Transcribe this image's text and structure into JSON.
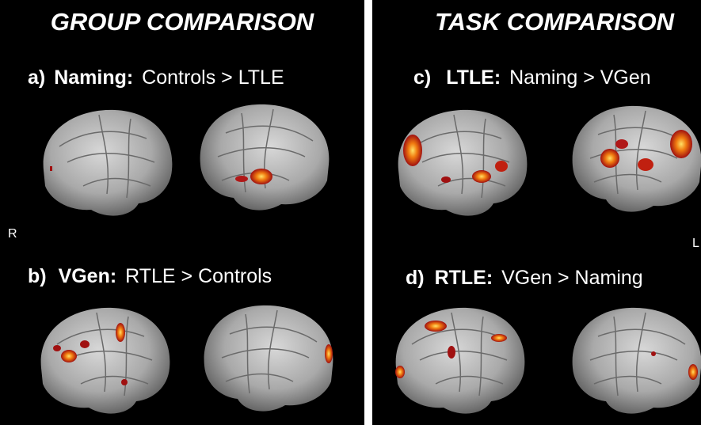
{
  "panels": [
    {
      "title": "GROUP COMPARISON",
      "rows": [
        {
          "label": "a)",
          "contrast_name": "Naming:",
          "contrast": "Controls > LTLE"
        },
        {
          "label": "b)",
          "contrast_name": "VGen:",
          "contrast": "RTLE > Controls"
        }
      ]
    },
    {
      "title": "TASK COMPARISON",
      "rows": [
        {
          "label": "c)",
          "contrast_name": "LTLE:",
          "contrast": "Naming > VGen"
        },
        {
          "label": "d)",
          "contrast_name": "RTLE:",
          "contrast": "VGen > Naming"
        }
      ]
    }
  ],
  "markers": [
    "R",
    "L"
  ]
}
